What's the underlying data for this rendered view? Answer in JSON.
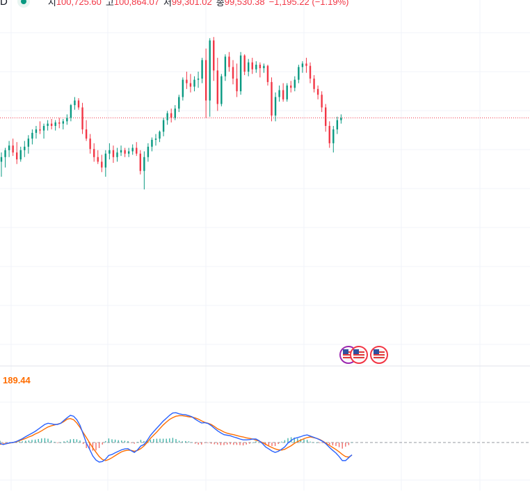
{
  "header": {
    "symbol_fragment": "D",
    "open_label": "시",
    "open_value": "100,725.60",
    "high_label": "고",
    "high_value": "100,864.07",
    "low_label": "저",
    "low_value": "99,301.02",
    "close_label": "종",
    "close_value": "99,530.38",
    "change": "−1,195.22 (−1.19%)",
    "status_icon": "market-open-dot-icon"
  },
  "macd_panel": {
    "value_label": "189.44"
  },
  "events": [
    {
      "icon": "us-flag-icon"
    },
    {
      "icon": "us-flag-icon"
    },
    {
      "icon": "us-flag-icon"
    }
  ],
  "colors": {
    "up": "#089981",
    "down": "#f23645",
    "macd_line": "#2962ff",
    "signal_line": "#ff6d00",
    "hist_up": "#26a69a",
    "hist_down": "#ef5350",
    "grid": "#f0f3fa",
    "price_line": "#f23645"
  },
  "chart_data": [
    {
      "type": "candlestick",
      "title": "",
      "ylim": [
        98450,
        100800
      ],
      "current_price_line": 99900,
      "grid": true,
      "candles": [
        [
          99520,
          99600,
          99390,
          99560
        ],
        [
          99560,
          99640,
          99470,
          99620
        ],
        [
          99620,
          99700,
          99560,
          99660
        ],
        [
          99660,
          99720,
          99570,
          99600
        ],
        [
          99600,
          99690,
          99500,
          99540
        ],
        [
          99540,
          99650,
          99520,
          99620
        ],
        [
          99620,
          99700,
          99560,
          99650
        ],
        [
          99650,
          99750,
          99590,
          99720
        ],
        [
          99720,
          99800,
          99670,
          99770
        ],
        [
          99770,
          99830,
          99720,
          99800
        ],
        [
          99800,
          99870,
          99760,
          99790
        ],
        [
          99790,
          99850,
          99720,
          99830
        ],
        [
          99830,
          99880,
          99790,
          99850
        ],
        [
          99850,
          99890,
          99800,
          99830
        ],
        [
          99830,
          99880,
          99790,
          99860
        ],
        [
          99860,
          99900,
          99810,
          99850
        ],
        [
          99850,
          99890,
          99800,
          99870
        ],
        [
          99870,
          99930,
          99840,
          99900
        ],
        [
          99900,
          100020,
          99870,
          100010
        ],
        [
          100010,
          100080,
          99970,
          100050
        ],
        [
          100050,
          100070,
          99970,
          99990
        ],
        [
          99990,
          100030,
          99760,
          99800
        ],
        [
          99800,
          99880,
          99700,
          99720
        ],
        [
          99720,
          99760,
          99590,
          99630
        ],
        [
          99630,
          99680,
          99520,
          99560
        ],
        [
          99560,
          99620,
          99500,
          99520
        ],
        [
          99520,
          99580,
          99430,
          99470
        ],
        [
          99470,
          99620,
          99390,
          99590
        ],
        [
          99590,
          99680,
          99540,
          99620
        ],
        [
          99620,
          99660,
          99510,
          99560
        ],
        [
          99560,
          99640,
          99520,
          99600
        ],
        [
          99600,
          99660,
          99570,
          99620
        ],
        [
          99620,
          99640,
          99560,
          99590
        ],
        [
          99590,
          99640,
          99560,
          99610
        ],
        [
          99610,
          99670,
          99580,
          99640
        ],
        [
          99640,
          99690,
          99570,
          99590
        ],
        [
          99590,
          99620,
          99410,
          99440
        ],
        [
          99440,
          99610,
          99280,
          99560
        ],
        [
          99560,
          99680,
          99520,
          99650
        ],
        [
          99650,
          99730,
          99610,
          99710
        ],
        [
          99710,
          99760,
          99660,
          99720
        ],
        [
          99720,
          99790,
          99690,
          99780
        ],
        [
          99780,
          99900,
          99740,
          99880
        ],
        [
          99880,
          99960,
          99840,
          99940
        ],
        [
          99940,
          99980,
          99860,
          99900
        ],
        [
          99900,
          100010,
          99880,
          99980
        ],
        [
          99980,
          100100,
          99950,
          100080
        ],
        [
          100080,
          100250,
          100050,
          100230
        ],
        [
          100230,
          100300,
          100150,
          100200
        ],
        [
          100200,
          100280,
          100120,
          100170
        ],
        [
          100170,
          100260,
          100130,
          100230
        ],
        [
          100230,
          100300,
          100160,
          100240
        ],
        [
          100240,
          100420,
          100200,
          100400
        ],
        [
          100400,
          100500,
          99900,
          100050
        ],
        [
          100050,
          100590,
          99910,
          100570
        ],
        [
          100570,
          100600,
          100220,
          100310
        ],
        [
          100310,
          100420,
          99960,
          100020
        ],
        [
          100020,
          100280,
          100000,
          100260
        ],
        [
          100260,
          100450,
          100220,
          100430
        ],
        [
          100430,
          100470,
          100300,
          100340
        ],
        [
          100340,
          100400,
          100190,
          100240
        ],
        [
          100240,
          100370,
          100080,
          100130
        ],
        [
          100130,
          100470,
          100100,
          100440
        ],
        [
          100440,
          100450,
          100270,
          100300
        ],
        [
          100300,
          100410,
          100260,
          100380
        ],
        [
          100380,
          100420,
          100280,
          100320
        ],
        [
          100320,
          100390,
          100290,
          100360
        ],
        [
          100360,
          100380,
          100250,
          100330
        ],
        [
          100330,
          100370,
          100290,
          100350
        ],
        [
          100350,
          100360,
          100180,
          100210
        ],
        [
          100210,
          100250,
          99870,
          99920
        ],
        [
          99920,
          100120,
          99870,
          100080
        ],
        [
          100080,
          100180,
          100040,
          100140
        ],
        [
          100140,
          100200,
          100040,
          100060
        ],
        [
          100060,
          100200,
          100040,
          100180
        ],
        [
          100180,
          100220,
          100120,
          100160
        ],
        [
          100160,
          100260,
          100130,
          100230
        ],
        [
          100230,
          100360,
          100200,
          100340
        ],
        [
          100340,
          100390,
          100290,
          100370
        ],
        [
          100370,
          100420,
          100290,
          100350
        ],
        [
          100350,
          100380,
          100200,
          100240
        ],
        [
          100240,
          100270,
          100120,
          100150
        ],
        [
          100150,
          100180,
          100060,
          100100
        ],
        [
          100100,
          100130,
          99950,
          99990
        ],
        [
          99990,
          100020,
          99780,
          99830
        ],
        [
          99830,
          99870,
          99640,
          99680
        ],
        [
          99680,
          99830,
          99600,
          99800
        ],
        [
          99800,
          99910,
          99760,
          99880
        ],
        [
          99880,
          99930,
          99850,
          99900
        ]
      ]
    },
    {
      "type": "line+histogram",
      "title": "",
      "value_label": "189.44",
      "series": [
        {
          "name": "",
          "values": [
            -3,
            -7,
            -4,
            -1,
            0,
            3,
            8,
            13,
            20,
            26,
            32,
            38,
            46,
            54,
            62,
            66,
            64,
            62,
            62,
            66,
            76,
            85,
            93,
            90,
            78,
            59,
            29,
            -2,
            -23,
            -46,
            -60,
            -67,
            -65,
            -57,
            -44,
            -41,
            -35,
            -30,
            -25,
            -22,
            -21,
            -28,
            -34,
            -25,
            -12,
            -7,
            7,
            24,
            37,
            49,
            61,
            73,
            83,
            93,
            101,
            102,
            98,
            96,
            95,
            92,
            88,
            80,
            73,
            67,
            68,
            65,
            58,
            49,
            40,
            33,
            27,
            25,
            23,
            19,
            16,
            12,
            9,
            9,
            10,
            12,
            12,
            6,
            -3,
            -15,
            -22,
            -29,
            -34,
            -30,
            -23,
            -15,
            -2,
            7,
            14,
            17,
            20,
            24,
            26,
            22,
            18,
            14,
            9,
            3,
            -6,
            -17,
            -27,
            -36,
            -48,
            -62,
            -62,
            -52,
            -42
          ]
        },
        {
          "name": "",
          "values": [
            -6,
            -5,
            -4,
            -2,
            0,
            2,
            6,
            10,
            14,
            19,
            23,
            29,
            34,
            40,
            47,
            53,
            57,
            60,
            63,
            66,
            72,
            80,
            82,
            78,
            67,
            52,
            34,
            17,
            -1,
            -18,
            -33,
            -48,
            -58,
            -62,
            -58,
            -52,
            -45,
            -38,
            -32,
            -28,
            -26,
            -27,
            -30,
            -27,
            -21,
            -12,
            0,
            14,
            25,
            36,
            48,
            60,
            70,
            79,
            85,
            90,
            92,
            92,
            90,
            88,
            87,
            84,
            80,
            74,
            69,
            66,
            62,
            55,
            47,
            42,
            36,
            32,
            29,
            27,
            24,
            21,
            19,
            16,
            14,
            12,
            8,
            5,
            0,
            -6,
            -12,
            -17,
            -22,
            -25,
            -26,
            -23,
            -17,
            -11,
            -3,
            3,
            8,
            13,
            17,
            19,
            17,
            14,
            10,
            4,
            -3,
            -10,
            -17,
            -24,
            -32,
            -41,
            -48,
            -50,
            -43
          ]
        }
      ],
      "histogram": [
        6,
        -2,
        -1,
        1,
        0,
        2,
        4,
        4,
        6,
        7,
        9,
        10,
        12,
        14,
        15,
        13,
        7,
        2,
        -1,
        0,
        4,
        6,
        11,
        12,
        11,
        7,
        -5,
        -19,
        -22,
        -28,
        -27,
        -19,
        -7,
        5,
        14,
        11,
        10,
        8,
        7,
        6,
        5,
        -1,
        -4,
        2,
        9,
        5,
        7,
        10,
        12,
        13,
        13,
        13,
        13,
        14,
        16,
        12,
        6,
        4,
        5,
        4,
        1,
        -4,
        -7,
        -7,
        -1,
        -1,
        -4,
        -6,
        -7,
        -9,
        -9,
        -7,
        -6,
        -8,
        -8,
        -9,
        -10,
        -7,
        -4,
        0,
        4,
        1,
        -3,
        -9,
        -10,
        -12,
        -12,
        -5,
        3,
        8,
        15,
        18,
        17,
        14,
        12,
        11,
        9,
        3,
        1,
        0,
        -1,
        -1,
        -3,
        -7,
        -10,
        -12,
        -16,
        -21,
        -14,
        -9,
        1
      ]
    }
  ]
}
